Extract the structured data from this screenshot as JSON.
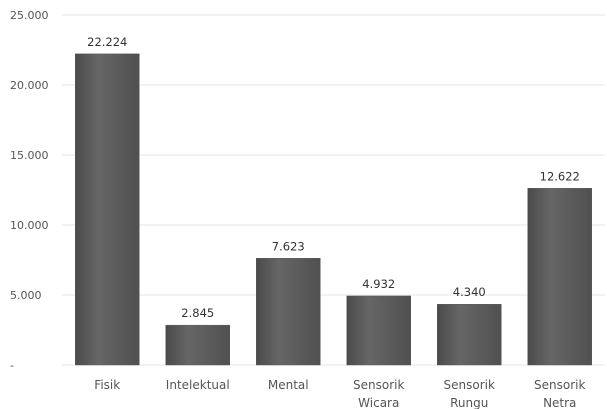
{
  "chart_data": {
    "type": "bar",
    "categories": [
      [
        "Fisik"
      ],
      [
        "Intelektual"
      ],
      [
        "Mental"
      ],
      [
        "Sensorik",
        "Wicara"
      ],
      [
        "Sensorik",
        "Rungu"
      ],
      [
        "Sensorik",
        "Netra"
      ]
    ],
    "values": [
      22224,
      2845,
      7623,
      4932,
      4340,
      12622
    ],
    "value_labels": [
      "22.224",
      "2.845",
      "7.623",
      "4.932",
      "4.340",
      "12.622"
    ],
    "y_ticks": [
      {
        "value": 0,
        "label": "-"
      },
      {
        "value": 5000,
        "label": "5.000"
      },
      {
        "value": 10000,
        "label": "10.000"
      },
      {
        "value": 15000,
        "label": "15.000"
      },
      {
        "value": 20000,
        "label": "20.000"
      },
      {
        "value": 25000,
        "label": "25.000"
      }
    ],
    "ylim": [
      0,
      25000
    ],
    "grid": true,
    "legend": "none",
    "bar_color": "#5a5a5a",
    "title": "",
    "xlabel": "",
    "ylabel": ""
  }
}
